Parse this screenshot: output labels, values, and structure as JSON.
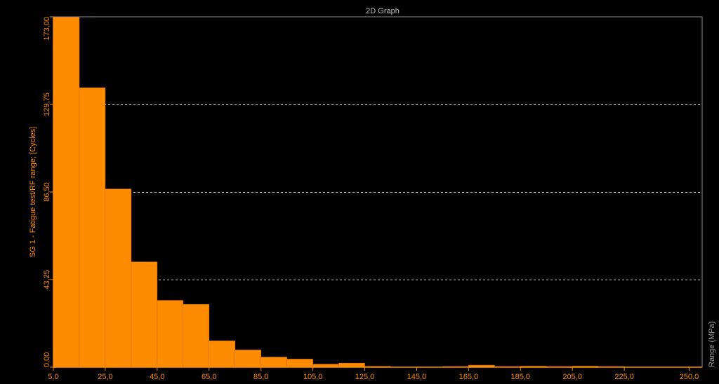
{
  "chart_data": {
    "type": "bar",
    "title": "2D Graph",
    "xlabel": "Range (MPa)",
    "ylabel": "SG 1 - Fatigue test/RF range; [Cycles]",
    "x_bin_edges": [
      5,
      15,
      25,
      35,
      45,
      55,
      65,
      75,
      85,
      95,
      105,
      115,
      125,
      135,
      145,
      155,
      165,
      175,
      185,
      195,
      205,
      215,
      225,
      235,
      245,
      255
    ],
    "values": [
      173,
      138,
      88,
      52,
      33,
      31,
      13,
      8.5,
      5,
      4,
      1.5,
      2,
      0.4,
      0,
      0,
      0.3,
      1,
      0.3,
      0.5,
      0.3,
      0.5,
      0.3,
      0,
      0,
      0
    ],
    "xlim": [
      5,
      255
    ],
    "ylim": [
      0,
      173
    ],
    "x_ticks": [
      "5,0",
      "25,0",
      "45,0",
      "65,0",
      "85,0",
      "105,0",
      "125,0",
      "145,0",
      "165,0",
      "185,0",
      "205,0",
      "225,0",
      "250,0"
    ],
    "x_tick_values": [
      5,
      25,
      45,
      65,
      85,
      105,
      125,
      145,
      165,
      185,
      205,
      225,
      250
    ],
    "y_ticks": [
      "0,00",
      "43,25",
      "86,50",
      "129,75",
      "173,00"
    ],
    "y_tick_values": [
      0,
      43.25,
      86.5,
      129.75,
      173
    ],
    "grid": "horizontal-dashed",
    "colors": {
      "bar": "#ff8c00",
      "bar_edge": "#cc6a00",
      "background": "#000000",
      "frame": "#8a8a8a",
      "grid": "#cfcfcf",
      "tick_text": "#ff8c00",
      "title_text": "#bbbbbb",
      "xlabel_text": "#9a9a9a"
    }
  }
}
